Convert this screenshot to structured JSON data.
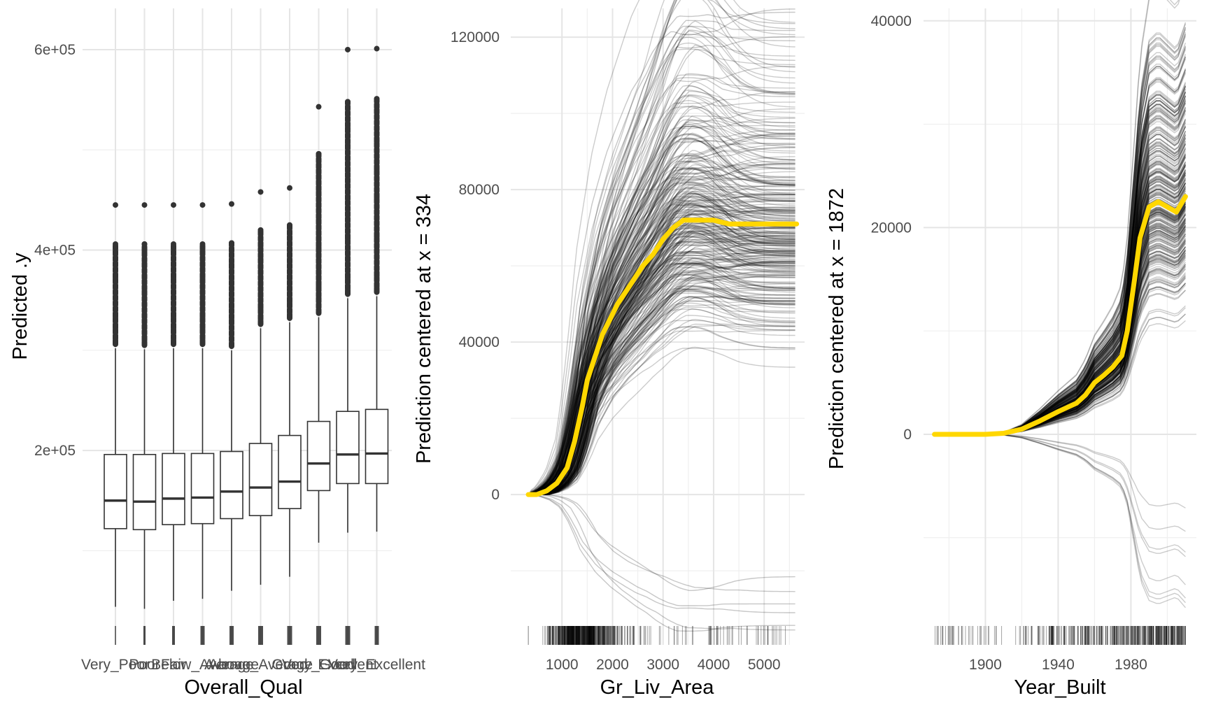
{
  "chart_data": [
    {
      "type": "box",
      "xlabel": "Overall_Qual",
      "ylabel": "Predicted .y",
      "categories": [
        "Very_Poor",
        "Poor",
        "Fair",
        "Below_Average",
        "Average",
        "Above_Average",
        "Good",
        "Very_Good",
        "Excellent",
        "Very_Excellent"
      ],
      "tick_labels": [
        "Very_Poor",
        "Poor",
        "Fair",
        "Below_Average",
        "Average",
        "Above_Average",
        "Good",
        "Very_Good",
        "Excellent",
        "Very_Excellent"
      ],
      "yticks": [
        200000,
        400000,
        600000
      ],
      "ytick_labels": [
        "2e+05",
        "4e+05",
        "6e+05"
      ],
      "ylim": [
        20000,
        630000
      ],
      "boxes": [
        {
          "q1": 122000,
          "median": 150000,
          "q3": 196000,
          "whisker_low": 44000,
          "whisker_high": 302000,
          "outliers": [
            310000,
            322000,
            333000,
            346000,
            359000,
            372000,
            387000,
            399000,
            406000,
            445000
          ]
        },
        {
          "q1": 121000,
          "median": 149000,
          "q3": 196000,
          "whisker_low": 42000,
          "whisker_high": 301000,
          "outliers": [
            310000,
            322000,
            333000,
            346000,
            359000,
            372000,
            387000,
            399000,
            406000,
            445000
          ]
        },
        {
          "q1": 126000,
          "median": 152000,
          "q3": 197000,
          "whisker_low": 50000,
          "whisker_high": 302000,
          "outliers": [
            310000,
            322000,
            333000,
            346000,
            359000,
            372000,
            387000,
            399000,
            406000,
            445000
          ]
        },
        {
          "q1": 127000,
          "median": 153000,
          "q3": 197000,
          "whisker_low": 52000,
          "whisker_high": 302000,
          "outliers": [
            310000,
            322000,
            333000,
            346000,
            359000,
            372000,
            387000,
            399000,
            406000,
            445000
          ]
        },
        {
          "q1": 132000,
          "median": 159000,
          "q3": 199000,
          "whisker_low": 60000,
          "whisker_high": 300000,
          "outliers": [
            306000,
            318000,
            330000,
            343000,
            357000,
            371000,
            386000,
            399000,
            407000,
            446000
          ]
        },
        {
          "q1": 135000,
          "median": 163000,
          "q3": 207000,
          "whisker_low": 66000,
          "whisker_high": 322000,
          "outliers": [
            331000,
            342000,
            354000,
            366000,
            378000,
            391000,
            404000,
            420000,
            458000
          ]
        },
        {
          "q1": 142000,
          "median": 169000,
          "q3": 215000,
          "whisker_low": 74000,
          "whisker_high": 328000,
          "outliers": [
            336000,
            348000,
            361000,
            374000,
            388000,
            402000,
            416000,
            425000,
            462000
          ]
        },
        {
          "q1": 160000,
          "median": 187000,
          "q3": 229000,
          "whisker_low": 108000,
          "whisker_high": 333000,
          "outliers": [
            340000,
            352000,
            364000,
            377000,
            390000,
            403000,
            416000,
            430000,
            444000,
            458000,
            472000,
            484000,
            496000,
            543000
          ]
        },
        {
          "q1": 167000,
          "median": 196000,
          "q3": 239000,
          "whisker_low": 118000,
          "whisker_high": 352000,
          "outliers": [
            360000,
            372000,
            385000,
            398000,
            411000,
            424000,
            437000,
            451000,
            465000,
            479000,
            492000,
            505000,
            522000,
            537000,
            548000,
            600000
          ]
        },
        {
          "q1": 167000,
          "median": 197000,
          "q3": 241000,
          "whisker_low": 119000,
          "whisker_high": 354000,
          "outliers": [
            362000,
            374000,
            387000,
            400000,
            413000,
            426000,
            439000,
            452000,
            466000,
            480000,
            494000,
            508000,
            522000,
            540000,
            551000,
            601000
          ]
        }
      ]
    },
    {
      "type": "line",
      "plot_kind": "centered ICE curves",
      "xlabel": "Gr_Liv_Area",
      "ylabel": "Prediction centered at x = 334",
      "xticks": [
        1000,
        2000,
        3000,
        4000,
        5000
      ],
      "yticks": [
        0,
        40000,
        80000,
        120000
      ],
      "xlim": [
        180,
        5800
      ],
      "ylim": [
        -33000,
        127000
      ],
      "average_curve": {
        "name": "average",
        "color": "#FFD700",
        "x": [
          334,
          500,
          700,
          900,
          1100,
          1250,
          1400,
          1500,
          1650,
          1800,
          1950,
          2100,
          2300,
          2450,
          2600,
          2800,
          3000,
          3200,
          3400,
          3600,
          3800,
          4000,
          4300,
          4600,
          5000,
          5642
        ],
        "y": [
          0,
          0,
          1000,
          3000,
          7000,
          14000,
          23000,
          30000,
          36000,
          42000,
          46000,
          50000,
          54000,
          57000,
          60000,
          63000,
          67000,
          70000,
          72000,
          72000,
          72000,
          72000,
          71000,
          71000,
          71000,
          71000
        ]
      },
      "rug_x_range": [
        334,
        5642
      ]
    },
    {
      "type": "line",
      "plot_kind": "centered ICE curves",
      "xlabel": "Year_Built",
      "ylabel": "Prediction centered at x = 1872",
      "xticks": [
        1900,
        1940,
        1980
      ],
      "yticks": [
        0,
        20000,
        40000
      ],
      "xlim": [
        1866,
        2016
      ],
      "ylim": [
        -18000,
        41000
      ],
      "average_curve": {
        "name": "average",
        "color": "#FFD700",
        "x": [
          1872,
          1880,
          1890,
          1900,
          1910,
          1920,
          1930,
          1940,
          1945,
          1950,
          1955,
          1960,
          1965,
          1970,
          1975,
          1978,
          1982,
          1985,
          1990,
          1995,
          2000,
          2005,
          2010
        ],
        "y": [
          0,
          0,
          0,
          0,
          100,
          500,
          1300,
          2200,
          2600,
          3000,
          3800,
          5000,
          5700,
          6500,
          7600,
          10000,
          15000,
          19000,
          22000,
          22500,
          22000,
          21500,
          23000
        ]
      },
      "rug_x_range": [
        1872,
        2010
      ]
    }
  ],
  "panels": [
    {
      "xlabel": "Overall_Qual",
      "ylabel": "Predicted .y",
      "yticks": [
        {
          "value": 200000,
          "label": "2e+05"
        },
        {
          "value": 400000,
          "label": "4e+05"
        },
        {
          "value": 600000,
          "label": "6e+05"
        }
      ],
      "xtick_labels": [
        "Very_Poor",
        "Poor",
        "Fair",
        "Below_Average",
        "Average",
        "Above_Average",
        "Good",
        "Very_Good",
        "Excellent",
        "Very_Excellent"
      ]
    },
    {
      "xlabel": "Gr_Liv_Area",
      "ylabel": "Prediction centered at x = 334",
      "xticks": [
        {
          "value": 1000,
          "label": "1000"
        },
        {
          "value": 2000,
          "label": "2000"
        },
        {
          "value": 3000,
          "label": "3000"
        },
        {
          "value": 4000,
          "label": "4000"
        },
        {
          "value": 5000,
          "label": "5000"
        }
      ],
      "yticks": [
        {
          "value": 0,
          "label": "0"
        },
        {
          "value": 40000,
          "label": "40000"
        },
        {
          "value": 80000,
          "label": "80000"
        },
        {
          "value": 120000,
          "label": "120000"
        }
      ]
    },
    {
      "xlabel": "Year_Built",
      "ylabel": "Prediction centered at x = 1872",
      "xticks": [
        {
          "value": 1900,
          "label": "1900"
        },
        {
          "value": 1940,
          "label": "1940"
        },
        {
          "value": 1980,
          "label": "1980"
        }
      ],
      "yticks": [
        {
          "value": 0,
          "label": "0"
        },
        {
          "value": 20000,
          "label": "20000"
        },
        {
          "value": 40000,
          "label": "40000"
        }
      ]
    }
  ],
  "colors": {
    "background": "#ffffff",
    "grid_major": "#e5e5e5",
    "grid_minor": "#efefef",
    "ice_lines": "#000000",
    "average_line": "#FFD700",
    "box_stroke": "#333333",
    "tick_text": "#4d4d4d",
    "title_text": "#000000"
  }
}
